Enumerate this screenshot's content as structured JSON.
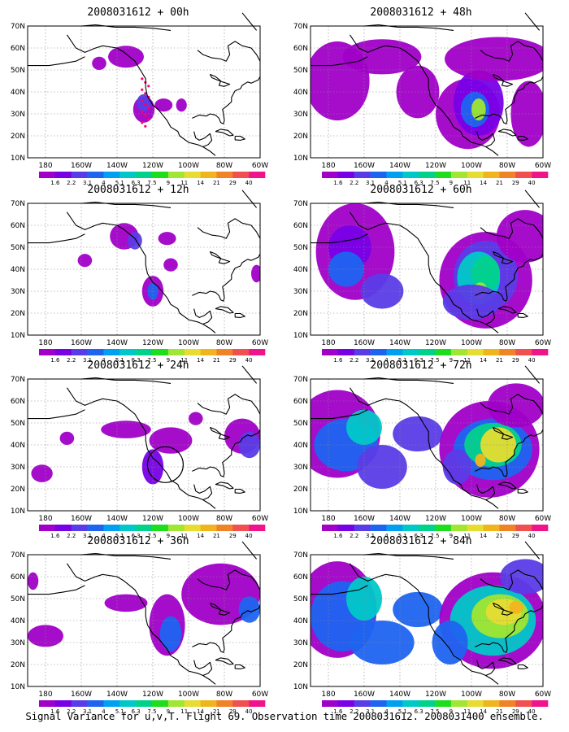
{
  "caption": "Signal Variance for u,v,T. Flight 69. Observation time 2008031612. 2008031400 ensemble.",
  "lat_labels": [
    "70N",
    "60N",
    "50N",
    "40N",
    "30N",
    "20N",
    "10N"
  ],
  "lon_labels": [
    "180",
    "160W",
    "140W",
    "120W",
    "100W",
    "80W",
    "60W"
  ],
  "colorbar": {
    "labels": [
      "1.6",
      "2.2",
      "3.1",
      "4",
      "5.1",
      "6.3",
      "7.5",
      "9",
      "11",
      "14",
      "21",
      "29",
      "40"
    ],
    "colors": [
      "#a000c8",
      "#7800e6",
      "#5a3ce6",
      "#1e64f0",
      "#00a0f0",
      "#00c8c8",
      "#00d28c",
      "#1edc1e",
      "#a0e632",
      "#e6dc32",
      "#f0b41e",
      "#f08228",
      "#f05050",
      "#f0148c"
    ]
  },
  "panels": [
    {
      "title": "2008031612 + 00h",
      "intensity": 0
    },
    {
      "title": "2008031612 + 48h",
      "intensity": 4
    },
    {
      "title": "2008031612 + 12h",
      "intensity": 1
    },
    {
      "title": "2008031612 + 60h",
      "intensity": 5
    },
    {
      "title": "2008031612 + 24h",
      "intensity": 2
    },
    {
      "title": "2008031612 + 72h",
      "intensity": 6
    },
    {
      "title": "2008031612 + 36h",
      "intensity": 3
    },
    {
      "title": "2008031612 + 84h",
      "intensity": 7
    }
  ]
}
